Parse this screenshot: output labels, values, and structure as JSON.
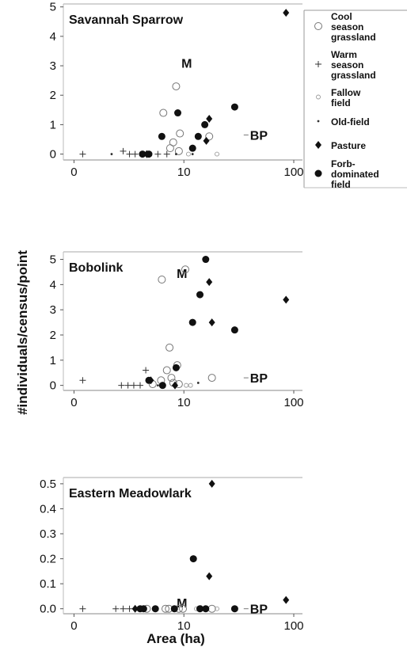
{
  "chart_data": {
    "type": "scatter",
    "xlabel": "Area (ha)",
    "ylabel": "#individuals/census/point",
    "xscale": "log",
    "legend_position": "right",
    "series_styles": [
      {
        "key": "cool",
        "marker": "open-circle"
      },
      {
        "key": "warm",
        "marker": "plus"
      },
      {
        "key": "fallow",
        "marker": "small-open-circle"
      },
      {
        "key": "oldfield",
        "marker": "dot"
      },
      {
        "key": "pasture",
        "marker": "filled-diamond"
      },
      {
        "key": "forb",
        "marker": "filled-circle"
      }
    ],
    "legend": [
      {
        "key": "cool",
        "lines": [
          "Cool",
          "season",
          "grassland"
        ]
      },
      {
        "key": "warm",
        "lines": [
          "Warm",
          "season",
          "grassland"
        ]
      },
      {
        "key": "fallow",
        "lines": [
          "Fallow",
          "field"
        ]
      },
      {
        "key": "oldfield",
        "lines": [
          "Old-field"
        ]
      },
      {
        "key": "pasture",
        "lines": [
          "Pasture"
        ]
      },
      {
        "key": "forb",
        "lines": [
          "Forb-",
          "dominated",
          "field"
        ]
      }
    ],
    "panels": [
      {
        "title": "Savannah Sparrow",
        "x_ticks": [
          {
            "value": 1,
            "label": "0"
          },
          {
            "value": 10,
            "label": "10"
          },
          {
            "value": 100,
            "label": "100"
          }
        ],
        "y_ticks": [
          {
            "value": 0,
            "label": "0"
          },
          {
            "value": 1,
            "label": "1"
          },
          {
            "value": 2,
            "label": "2"
          },
          {
            "value": 3,
            "label": "3"
          },
          {
            "value": 4,
            "label": "4"
          },
          {
            "value": 5,
            "label": "5"
          }
        ],
        "xlim": [
          0.8,
          120
        ],
        "ylim": [
          -0.2,
          5.1
        ],
        "annotations": [
          {
            "text": "M",
            "x": 9.5,
            "y": 3.1
          },
          {
            "text": "BP",
            "x": 40,
            "y": 0.65
          }
        ],
        "points": [
          {
            "s": "cool",
            "x": 6.5,
            "y": 1.4
          },
          {
            "s": "cool",
            "x": 8.5,
            "y": 2.3
          },
          {
            "s": "cool",
            "x": 7.5,
            "y": 0.2
          },
          {
            "s": "cool",
            "x": 9.2,
            "y": 0.7
          },
          {
            "s": "cool",
            "x": 8.0,
            "y": 0.4
          },
          {
            "s": "cool",
            "x": 9.0,
            "y": 0.1
          },
          {
            "s": "cool",
            "x": 17,
            "y": 0.6
          },
          {
            "s": "warm",
            "x": 1.2,
            "y": 0.0
          },
          {
            "s": "warm",
            "x": 2.8,
            "y": 0.1
          },
          {
            "s": "warm",
            "x": 3.2,
            "y": 0.0
          },
          {
            "s": "warm",
            "x": 3.6,
            "y": 0.0
          },
          {
            "s": "warm",
            "x": 5.8,
            "y": 0.0
          },
          {
            "s": "warm",
            "x": 7.0,
            "y": 0.0
          },
          {
            "s": "fallow",
            "x": 11,
            "y": 0.0
          },
          {
            "s": "fallow",
            "x": 20,
            "y": 0.0
          },
          {
            "s": "oldfield",
            "x": 2.2,
            "y": 0.0
          },
          {
            "s": "oldfield",
            "x": 8.5,
            "y": 0.0
          },
          {
            "s": "oldfield",
            "x": 12,
            "y": 0.0
          },
          {
            "s": "pasture",
            "x": 4.6,
            "y": 0.0
          },
          {
            "s": "pasture",
            "x": 16,
            "y": 0.45
          },
          {
            "s": "pasture",
            "x": 17,
            "y": 1.2
          },
          {
            "s": "pasture",
            "x": 85,
            "y": 4.8
          },
          {
            "s": "forb",
            "x": 4.2,
            "y": 0.0
          },
          {
            "s": "forb",
            "x": 4.8,
            "y": 0.0
          },
          {
            "s": "forb",
            "x": 6.3,
            "y": 0.6
          },
          {
            "s": "forb",
            "x": 8.8,
            "y": 1.4
          },
          {
            "s": "forb",
            "x": 12,
            "y": 0.2
          },
          {
            "s": "forb",
            "x": 13.5,
            "y": 0.6
          },
          {
            "s": "forb",
            "x": 15.5,
            "y": 1.0
          },
          {
            "s": "forb",
            "x": 29,
            "y": 1.6
          }
        ]
      },
      {
        "title": "Bobolink",
        "x_ticks": [
          {
            "value": 1,
            "label": "0"
          },
          {
            "value": 10,
            "label": "10"
          },
          {
            "value": 100,
            "label": "100"
          }
        ],
        "y_ticks": [
          {
            "value": 0,
            "label": "0"
          },
          {
            "value": 1,
            "label": "1"
          },
          {
            "value": 2,
            "label": "2"
          },
          {
            "value": 3,
            "label": "3"
          },
          {
            "value": 4,
            "label": "4"
          },
          {
            "value": 5,
            "label": "5"
          }
        ],
        "xlim": [
          0.8,
          120
        ],
        "ylim": [
          -0.2,
          5.3
        ],
        "annotations": [
          {
            "text": "M",
            "x": 8.6,
            "y": 4.45
          },
          {
            "text": "BP",
            "x": 40,
            "y": 0.3
          }
        ],
        "points": [
          {
            "s": "cool",
            "x": 6.3,
            "y": 4.2
          },
          {
            "s": "cool",
            "x": 10.3,
            "y": 4.6
          },
          {
            "s": "cool",
            "x": 7.4,
            "y": 1.5
          },
          {
            "s": "cool",
            "x": 8.7,
            "y": 0.8
          },
          {
            "s": "cool",
            "x": 7.0,
            "y": 0.6
          },
          {
            "s": "cool",
            "x": 7.7,
            "y": 0.3
          },
          {
            "s": "cool",
            "x": 6.2,
            "y": 0.2
          },
          {
            "s": "cool",
            "x": 5.2,
            "y": 0.05
          },
          {
            "s": "cool",
            "x": 8.0,
            "y": 0.1
          },
          {
            "s": "cool",
            "x": 9.0,
            "y": 0.05
          },
          {
            "s": "cool",
            "x": 18,
            "y": 0.3
          },
          {
            "s": "warm",
            "x": 1.2,
            "y": 0.2
          },
          {
            "s": "warm",
            "x": 2.7,
            "y": 0.0
          },
          {
            "s": "warm",
            "x": 3.1,
            "y": 0.0
          },
          {
            "s": "warm",
            "x": 3.5,
            "y": 0.0
          },
          {
            "s": "warm",
            "x": 4.0,
            "y": 0.0
          },
          {
            "s": "warm",
            "x": 4.5,
            "y": 0.6
          },
          {
            "s": "fallow",
            "x": 10.5,
            "y": 0.0
          },
          {
            "s": "fallow",
            "x": 11.5,
            "y": 0.0
          },
          {
            "s": "oldfield",
            "x": 5.8,
            "y": 0.0
          },
          {
            "s": "oldfield",
            "x": 13.5,
            "y": 0.1
          },
          {
            "s": "pasture",
            "x": 5.0,
            "y": 0.2
          },
          {
            "s": "pasture",
            "x": 8.3,
            "y": 0.0
          },
          {
            "s": "pasture",
            "x": 17,
            "y": 4.1
          },
          {
            "s": "pasture",
            "x": 18,
            "y": 2.5
          },
          {
            "s": "pasture",
            "x": 85,
            "y": 3.4
          },
          {
            "s": "forb",
            "x": 4.8,
            "y": 0.2
          },
          {
            "s": "forb",
            "x": 6.4,
            "y": 0.0
          },
          {
            "s": "forb",
            "x": 8.5,
            "y": 0.7
          },
          {
            "s": "forb",
            "x": 12,
            "y": 2.5
          },
          {
            "s": "forb",
            "x": 14,
            "y": 3.6
          },
          {
            "s": "forb",
            "x": 15.8,
            "y": 5.0
          },
          {
            "s": "forb",
            "x": 29,
            "y": 2.2
          }
        ]
      },
      {
        "title": "Eastern Meadowlark",
        "x_ticks": [
          {
            "value": 1,
            "label": "0"
          },
          {
            "value": 10,
            "label": "10"
          },
          {
            "value": 100,
            "label": "100"
          }
        ],
        "y_ticks": [
          {
            "value": 0,
            "label": "0.0"
          },
          {
            "value": 0.1,
            "label": "0.1"
          },
          {
            "value": 0.2,
            "label": "0.2"
          },
          {
            "value": 0.3,
            "label": "0.3"
          },
          {
            "value": 0.4,
            "label": "0.4"
          },
          {
            "value": 0.5,
            "label": "0.5"
          }
        ],
        "xlim": [
          0.8,
          120
        ],
        "ylim": [
          -0.02,
          0.525
        ],
        "annotations": [
          {
            "text": "M",
            "x": 8.6,
            "y": 0.025
          },
          {
            "text": "BP",
            "x": 40,
            "y": 0.0
          }
        ],
        "points": [
          {
            "s": "cool",
            "x": 4.6,
            "y": 0.0
          },
          {
            "s": "cool",
            "x": 6.8,
            "y": 0.0
          },
          {
            "s": "cool",
            "x": 7.3,
            "y": 0.0
          },
          {
            "s": "cool",
            "x": 9.0,
            "y": 0.0
          },
          {
            "s": "cool",
            "x": 9.8,
            "y": 0.0
          },
          {
            "s": "cool",
            "x": 18,
            "y": 0.0
          },
          {
            "s": "warm",
            "x": 1.2,
            "y": 0.0
          },
          {
            "s": "warm",
            "x": 2.4,
            "y": 0.0
          },
          {
            "s": "warm",
            "x": 2.8,
            "y": 0.0
          },
          {
            "s": "warm",
            "x": 3.2,
            "y": 0.0
          },
          {
            "s": "fallow",
            "x": 13,
            "y": 0.0
          },
          {
            "s": "fallow",
            "x": 20,
            "y": 0.0
          },
          {
            "s": "oldfield",
            "x": 14.5,
            "y": 0.0
          },
          {
            "s": "pasture",
            "x": 3.6,
            "y": 0.0
          },
          {
            "s": "pasture",
            "x": 17,
            "y": 0.13
          },
          {
            "s": "pasture",
            "x": 18,
            "y": 0.5
          },
          {
            "s": "pasture",
            "x": 85,
            "y": 0.035
          },
          {
            "s": "forb",
            "x": 4.0,
            "y": 0.0
          },
          {
            "s": "forb",
            "x": 4.3,
            "y": 0.0
          },
          {
            "s": "forb",
            "x": 5.5,
            "y": 0.0
          },
          {
            "s": "forb",
            "x": 8.2,
            "y": 0.0
          },
          {
            "s": "forb",
            "x": 12.2,
            "y": 0.2
          },
          {
            "s": "forb",
            "x": 14,
            "y": 0.0
          },
          {
            "s": "forb",
            "x": 15.8,
            "y": 0.0
          },
          {
            "s": "forb",
            "x": 29,
            "y": 0.0
          }
        ]
      }
    ]
  }
}
